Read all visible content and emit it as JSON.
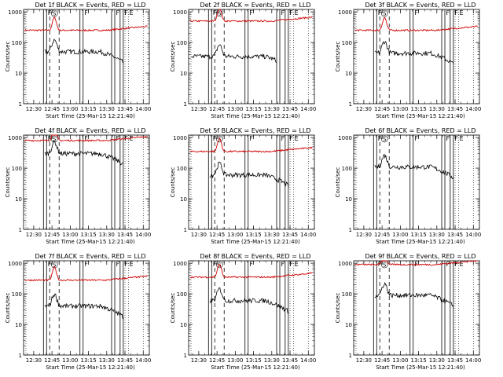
{
  "figure": {
    "xlabel": "Start Time (25-Mar-15 12:21:40)",
    "ylabel": "Counts/sec",
    "x_ticks": [
      "12:30",
      "12:45",
      "13:00",
      "13:15",
      "13:30",
      "13:45",
      "14:00"
    ],
    "y_ticks": [
      "1",
      "10",
      "100",
      "1000"
    ],
    "flag_letters": {
      "F": "F",
      "S": "S",
      "E": "E"
    },
    "colors": {
      "events": "#000000",
      "lld": "#d00000",
      "axes": "#000000"
    }
  },
  "chart_data": [
    {
      "type": "line",
      "title": "Det 1f BLACK = Events, RED = LLD",
      "xlim": [
        "12:21:40",
        "14:05"
      ],
      "ylim": [
        1,
        1200
      ],
      "y_scale": "log",
      "events_level": 50,
      "lld_level": 250,
      "events_start": "12:39",
      "events_end": "13:44",
      "flags": {
        "F": [
          "12:38",
          "13:08",
          "13:34",
          "13:41"
        ],
        "S": "12:47",
        "E": "13:48"
      }
    },
    {
      "type": "line",
      "title": "Det 2f BLACK = Events, RED = LLD",
      "xlim": [
        "12:21:40",
        "14:05"
      ],
      "ylim": [
        1,
        1200
      ],
      "y_scale": "log",
      "events_level": 35,
      "lld_level": 500,
      "events_start": "12:24",
      "events_end": "13:34",
      "flags": {
        "F": [
          "12:38",
          "13:08",
          "13:34",
          "13:41"
        ],
        "S": "12:47",
        "E": "13:48"
      }
    },
    {
      "type": "line",
      "title": "Det 3f BLACK = Events, RED = LLD",
      "xlim": [
        "12:21:40",
        "14:05"
      ],
      "ylim": [
        1,
        1200
      ],
      "y_scale": "log",
      "events_level": 45,
      "lld_level": 250,
      "events_start": "12:39",
      "events_end": "13:44",
      "flags": {
        "F": [
          "12:38",
          "13:08",
          "13:34",
          "13:41"
        ],
        "S": "12:47",
        "E": "13:48"
      }
    },
    {
      "type": "line",
      "title": "Det 4f BLACK = Events, RED = LLD",
      "xlim": [
        "12:21:40",
        "14:05"
      ],
      "ylim": [
        1,
        1200
      ],
      "y_scale": "log",
      "events_level": 300,
      "lld_level": 800,
      "events_start": "12:39",
      "events_end": "13:44",
      "flags": {
        "F": [
          "12:38",
          "13:08",
          "13:34",
          "13:41"
        ],
        "S": "12:47",
        "E": "13:48"
      }
    },
    {
      "type": "line",
      "title": "Det 5f BLACK = Events, RED = LLD",
      "xlim": [
        "12:21:40",
        "14:05"
      ],
      "ylim": [
        1,
        1200
      ],
      "y_scale": "log",
      "events_level": 60,
      "lld_level": 350,
      "events_start": "12:39",
      "events_end": "13:44",
      "flags": {
        "F": [
          "12:38",
          "13:08",
          "13:34",
          "13:41"
        ],
        "S": "12:47",
        "E": "13:48"
      }
    },
    {
      "type": "line",
      "title": "Det 6f BLACK = Events, RED = LLD",
      "xlim": [
        "12:21:40",
        "14:05"
      ],
      "ylim": [
        1,
        1200
      ],
      "y_scale": "log",
      "events_level": 110,
      "lld_level": null,
      "events_start": "12:39",
      "events_end": "13:44",
      "flags": {
        "F": [
          "12:38",
          "13:08",
          "13:34",
          "13:41"
        ],
        "S": "12:47",
        "E": "13:48"
      }
    },
    {
      "type": "line",
      "title": "Det 7f BLACK = Events, RED = LLD",
      "xlim": [
        "12:21:40",
        "14:05"
      ],
      "ylim": [
        1,
        1200
      ],
      "y_scale": "log",
      "events_level": 40,
      "lld_level": 280,
      "events_start": "12:39",
      "events_end": "13:44",
      "flags": {
        "F": [
          "12:38",
          "13:08",
          "13:34",
          "13:41"
        ],
        "S": "12:47",
        "E": "13:48"
      }
    },
    {
      "type": "line",
      "title": "Det 8f BLACK = Events, RED = LLD",
      "xlim": [
        "12:21:40",
        "14:05"
      ],
      "ylim": [
        1,
        1200
      ],
      "y_scale": "log",
      "events_level": 60,
      "lld_level": 350,
      "events_start": "12:39",
      "events_end": "13:44",
      "flags": {
        "F": [
          "12:38",
          "13:08",
          "13:34",
          "13:41"
        ],
        "S": "12:47",
        "E": "13:48"
      }
    },
    {
      "type": "line",
      "title": "Det 9f BLACK = Events, RED = LLD",
      "xlim": [
        "12:21:40",
        "14:05"
      ],
      "ylim": [
        1,
        1200
      ],
      "y_scale": "log",
      "events_level": 90,
      "lld_level": 900,
      "events_start": "12:39",
      "events_end": "13:44",
      "flags": {
        "F": [
          "12:38",
          "13:08",
          "13:34",
          "13:41"
        ],
        "S": "12:47",
        "E": "13:48"
      }
    }
  ]
}
